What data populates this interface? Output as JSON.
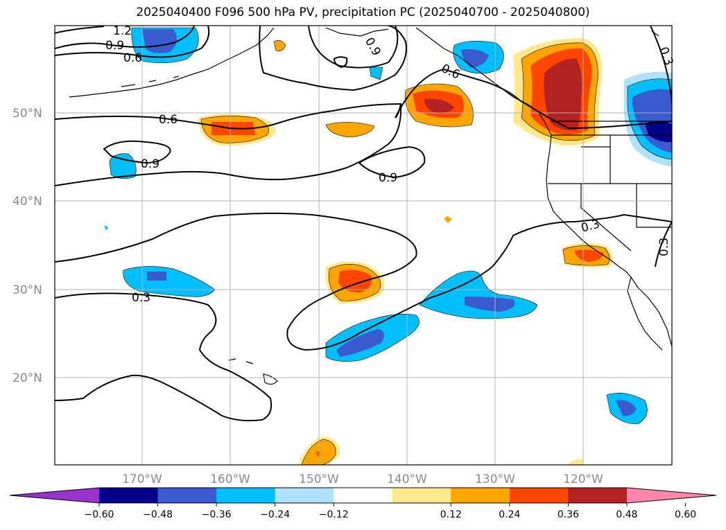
{
  "title": "2025040400 F096 500 hPa PV, precipitation PC (2025040700 - 2025040800)",
  "map": {
    "lat_labels": [
      {
        "lat": 50,
        "label": "50°N"
      },
      {
        "lat": 40,
        "label": "40°N"
      },
      {
        "lat": 30,
        "label": "30°N"
      },
      {
        "lat": 20,
        "label": "20°N"
      }
    ],
    "lon_labels": [
      {
        "lon": -170,
        "label": "170°W"
      },
      {
        "lon": -160,
        "label": "160°W"
      },
      {
        "lon": -150,
        "label": "150°W"
      },
      {
        "lon": -140,
        "label": "140°W"
      },
      {
        "lon": -130,
        "label": "130°W"
      },
      {
        "lon": -120,
        "label": "120°W"
      }
    ],
    "contour_labels": [
      "1.2",
      "0.9",
      "0.6",
      "0.9",
      "0.6",
      "0.6",
      "0.9",
      "0.9",
      "0.3",
      "0.3",
      "0.3",
      "0.3"
    ]
  },
  "colorbar": {
    "colors": [
      "#9932cc",
      "#00008b",
      "#3a5bcf",
      "#00bfff",
      "#b0e2ff",
      "#ffffff",
      "#ffe88a",
      "#ffa500",
      "#ff4500",
      "#b22222",
      "#ff88aa"
    ],
    "ticks": [
      "−0.60",
      "−0.48",
      "−0.36",
      "−0.24",
      "−0.12",
      "0.12",
      "0.24",
      "0.36",
      "0.48",
      "0.60"
    ]
  }
}
